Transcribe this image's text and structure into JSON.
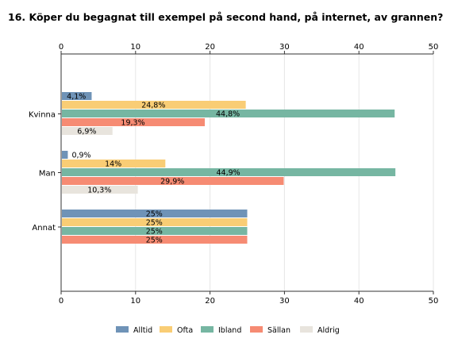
{
  "chart_data": {
    "type": "bar",
    "orientation": "horizontal",
    "title": "16. Köper du begagnat till exempel på second hand, på internet, av grannen?",
    "xlim": [
      0,
      50
    ],
    "x_ticks": [
      "0",
      "10",
      "20",
      "30",
      "40",
      "50"
    ],
    "x_axis_position": "top and bottom",
    "grid": true,
    "legend_position": "bottom",
    "categories": [
      "Kvinna",
      "Man",
      "Annat"
    ],
    "series": [
      {
        "name": "Alltid",
        "color": "#6f93b7",
        "values": [
          4.1,
          0.9,
          25
        ],
        "labels": [
          "4,1%",
          "0,9%",
          "25%"
        ]
      },
      {
        "name": "Ofta",
        "color": "#f9cd75",
        "values": [
          24.8,
          14,
          25
        ],
        "labels": [
          "24,8%",
          "14%",
          "25%"
        ]
      },
      {
        "name": "Ibland",
        "color": "#76b6a2",
        "values": [
          44.8,
          44.9,
          25
        ],
        "labels": [
          "44,8%",
          "44,9%",
          "25%"
        ]
      },
      {
        "name": "Sällan",
        "color": "#f68b73",
        "values": [
          19.3,
          29.9,
          25
        ],
        "labels": [
          "19,3%",
          "29,9%",
          "25%"
        ]
      },
      {
        "name": "Aldrig",
        "color": "#e8e4dd",
        "values": [
          6.9,
          10.3,
          null
        ],
        "labels": [
          "6,9%",
          "10,3%",
          ""
        ]
      }
    ]
  }
}
